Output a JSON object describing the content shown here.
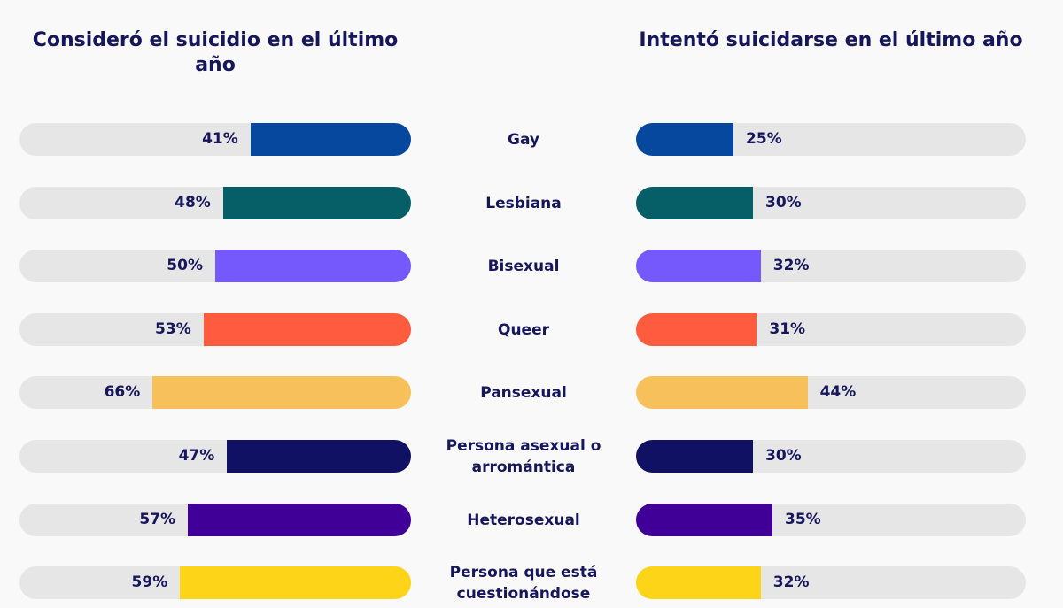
{
  "chart_data": [
    {
      "type": "bar",
      "orientation": "horizontal",
      "title": "Consideró el suicidio en el último año",
      "categories": [
        "Gay",
        "Lesbiana",
        "Bisexual",
        "Queer",
        "Pansexual",
        "Persona asexual o arromántica",
        "Heterosexual",
        "Persona que está cuestionándose"
      ],
      "values": [
        41,
        48,
        50,
        53,
        66,
        47,
        57,
        59
      ],
      "value_labels": [
        "41%",
        "48%",
        "50%",
        "53%",
        "66%",
        "47%",
        "57%",
        "59%"
      ],
      "xlim": [
        0,
        100
      ],
      "direction": "right-to-left",
      "grid": false
    },
    {
      "type": "bar",
      "orientation": "horizontal",
      "title": "Intentó suicidarse en el último año",
      "categories": [
        "Gay",
        "Lesbiana",
        "Bisexual",
        "Queer",
        "Pansexual",
        "Persona asexual o arromántica",
        "Heterosexual",
        "Persona que está cuestionándose"
      ],
      "values": [
        25,
        30,
        32,
        31,
        44,
        30,
        35,
        32
      ],
      "value_labels": [
        "25%",
        "30%",
        "32%",
        "31%",
        "44%",
        "30%",
        "35%",
        "32%"
      ],
      "xlim": [
        0,
        100
      ],
      "direction": "left-to-right",
      "grid": false
    }
  ],
  "colors": [
    "#06489e",
    "#065f66",
    "#7559fc",
    "#ff5b3e",
    "#f8c05a",
    "#111163",
    "#400098",
    "#fed419"
  ],
  "track_color": "#e6e6e6"
}
